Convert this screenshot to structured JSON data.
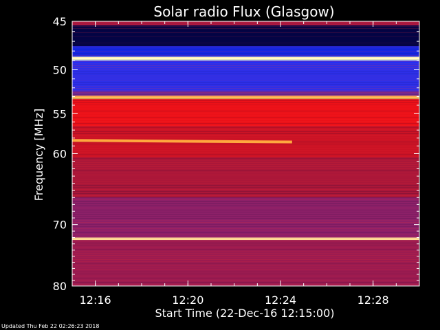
{
  "footer": {
    "updated": "Updated Thu Feb 22 02:26:23 2018"
  },
  "chart_data": {
    "type": "heatmap",
    "title": "Solar radio Flux (Glasgow)",
    "xlabel": "Start Time (22-Dec-16 12:15:00)",
    "ylabel": "Frequency [MHz]",
    "y_scale": "log",
    "xlim": [
      "12:15:00",
      "12:30:00"
    ],
    "ylim": [
      45,
      80
    ],
    "x_ticks": [
      "12:16",
      "12:20",
      "12:24",
      "12:28"
    ],
    "y_ticks": [
      45,
      50,
      55,
      60,
      70,
      80
    ],
    "colormap": [
      "#00001e",
      "#0a0a8c",
      "#1a30ff",
      "#6a2aa0",
      "#b01530",
      "#ff1010",
      "#ffb040",
      "#ffffc8"
    ],
    "bands": [
      {
        "from_mhz": 45.0,
        "to_mhz": 45.4,
        "level": 0.55
      },
      {
        "from_mhz": 45.4,
        "to_mhz": 47.5,
        "level": 0.05
      },
      {
        "from_mhz": 47.5,
        "to_mhz": 48.6,
        "level": 0.25
      },
      {
        "from_mhz": 48.6,
        "to_mhz": 49.0,
        "level": 1.0
      },
      {
        "from_mhz": 49.0,
        "to_mhz": 49.4,
        "level": 0.3
      },
      {
        "from_mhz": 49.4,
        "to_mhz": 52.4,
        "level": 0.32
      },
      {
        "from_mhz": 52.4,
        "to_mhz": 52.9,
        "level": 0.45
      },
      {
        "from_mhz": 52.9,
        "to_mhz": 53.3,
        "level": 0.88
      },
      {
        "from_mhz": 53.3,
        "to_mhz": 56.5,
        "level": 0.68
      },
      {
        "from_mhz": 56.5,
        "to_mhz": 60.5,
        "level": 0.62
      },
      {
        "from_mhz": 60.5,
        "to_mhz": 66.0,
        "level": 0.56
      },
      {
        "from_mhz": 66.0,
        "to_mhz": 72.0,
        "level": 0.5
      },
      {
        "from_mhz": 72.0,
        "to_mhz": 72.4,
        "level": 0.95
      },
      {
        "from_mhz": 72.4,
        "to_mhz": 80.0,
        "level": 0.53
      }
    ],
    "features": [
      {
        "type": "drifting_band",
        "start_time": "12:15:00",
        "end_time": "12:24:30",
        "start_mhz": 58.3,
        "end_mhz": 58.5,
        "level": 0.85
      }
    ]
  }
}
